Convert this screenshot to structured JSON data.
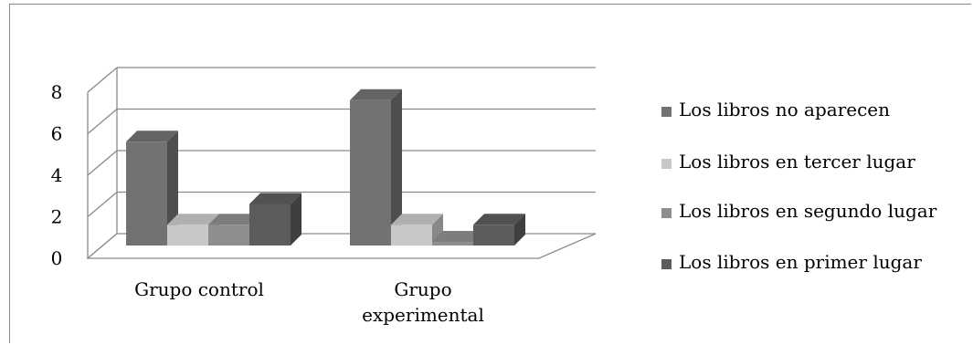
{
  "chart_data": {
    "type": "bar",
    "categories": [
      "Grupo control",
      "Grupo experimental"
    ],
    "series": [
      {
        "name": "Los libros no aparecen",
        "values": [
          5,
          7
        ],
        "color": "#727272"
      },
      {
        "name": "Los libros en tercer lugar",
        "values": [
          1,
          1
        ],
        "color": "#c8c8c8"
      },
      {
        "name": "Los libros en segundo lugar",
        "values": [
          1,
          0
        ],
        "color": "#8e8e8e"
      },
      {
        "name": "Los libros en primer lugar",
        "values": [
          2,
          1
        ],
        "color": "#5c5c5c"
      }
    ],
    "yticks": [
      "0",
      "2",
      "4",
      "6",
      "8"
    ],
    "ylim": [
      0,
      8
    ],
    "grid": true,
    "legend_position": "right",
    "bar_style": "3d"
  }
}
